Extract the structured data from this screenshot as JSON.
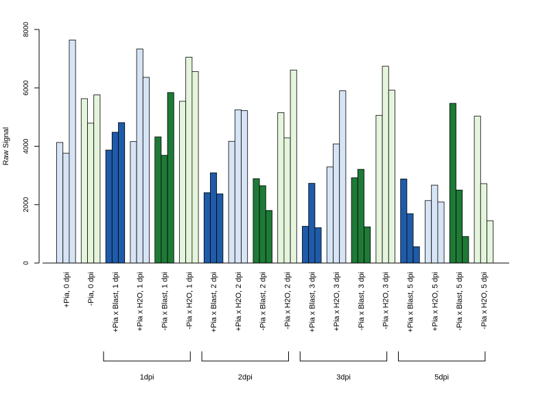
{
  "chart_data": {
    "type": "bar",
    "ylabel": "Raw Signal",
    "xlabel": "",
    "ylim": [
      0,
      8000
    ],
    "yticks": [
      0,
      2000,
      4000,
      6000,
      8000
    ],
    "grid": false,
    "categories": [
      "+Pia, 0 dpi",
      "-Pia, 0 dpi",
      "+Pia x Blast, 1 dpi",
      "+Pia x H2O, 1 dpi",
      "-Pia x Blast, 1 dpi",
      "-Pia x H2O, 1 dpi",
      "+Pia x Blast, 2 dpi",
      "+Pia x H2O, 2 dpi",
      "-Pia x Blast, 2 dpi",
      "-Pia x H2O, 2 dpi",
      "+Pia x Blast, 3 dpi",
      "+Pia x H2O, 3 dpi",
      "-Pia x Blast, 3 dpi",
      "-Pia x H2O, 3 dpi",
      "+Pia x Blast, 5 dpi",
      "+Pia x H2O, 5 dpi",
      "-Pia x Blast, 5 dpi",
      "-Pia x H2O, 5 dpi"
    ],
    "colors": [
      "#d6e4f5",
      "#e4f5dc",
      "#1f5ba8",
      "#d6e4f5",
      "#1e7a36",
      "#e4f5dc",
      "#1f5ba8",
      "#d6e4f5",
      "#1e7a36",
      "#e4f5dc",
      "#1f5ba8",
      "#d6e4f5",
      "#1e7a36",
      "#e4f5dc",
      "#1f5ba8",
      "#d6e4f5",
      "#1e7a36",
      "#e4f5dc"
    ],
    "values": [
      [
        4130,
        3760,
        7640
      ],
      [
        5630,
        4790,
        5760
      ],
      [
        3870,
        4480,
        4810
      ],
      [
        4160,
        7330,
        6360
      ],
      [
        4320,
        3690,
        5840
      ],
      [
        5540,
        7050,
        6560
      ],
      [
        2410,
        3090,
        2370
      ],
      [
        4170,
        5250,
        5220
      ],
      [
        2890,
        2650,
        1800
      ],
      [
        5150,
        4290,
        6610
      ],
      [
        1260,
        2730,
        1210
      ],
      [
        3290,
        4080,
        5900
      ],
      [
        2920,
        3210,
        1240
      ],
      [
        5060,
        6740,
        5920
      ],
      [
        2880,
        1690,
        560
      ],
      [
        2140,
        2670,
        2090
      ],
      [
        5470,
        2500,
        910
      ],
      [
        5030,
        2720,
        1450
      ]
    ],
    "groups": [
      {
        "label": "1dpi",
        "start": 2,
        "end": 5
      },
      {
        "label": "2dpi",
        "start": 6,
        "end": 9
      },
      {
        "label": "3dpi",
        "start": 10,
        "end": 13
      },
      {
        "label": "5dpi",
        "start": 14,
        "end": 17
      }
    ]
  }
}
